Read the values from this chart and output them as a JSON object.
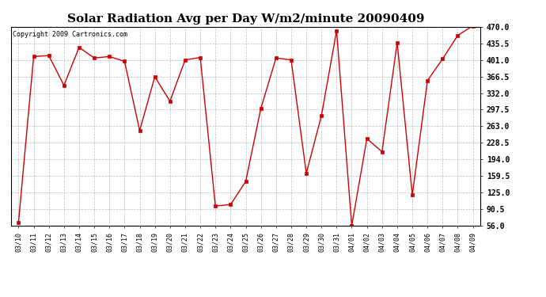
{
  "title": "Solar Radiation Avg per Day W/m2/minute 20090409",
  "copyright": "Copyright 2009 Cartronics.com",
  "labels": [
    "03/10",
    "03/11",
    "03/12",
    "03/13",
    "03/14",
    "03/15",
    "03/16",
    "03/17",
    "03/18",
    "03/19",
    "03/20",
    "03/21",
    "03/22",
    "03/23",
    "03/24",
    "03/25",
    "03/26",
    "03/27",
    "03/28",
    "03/29",
    "03/30",
    "03/31",
    "04/01",
    "04/02",
    "04/03",
    "04/04",
    "04/05",
    "04/06",
    "04/07",
    "04/08",
    "04/09"
  ],
  "values": [
    63,
    408,
    410,
    348,
    427,
    405,
    408,
    398,
    254,
    366,
    315,
    401,
    406,
    97,
    100,
    148,
    300,
    405,
    401,
    165,
    285,
    462,
    56,
    237,
    210,
    437,
    120,
    358,
    403,
    452,
    472
  ],
  "line_color": "#cc0000",
  "marker": "s",
  "marker_size": 2.5,
  "background_color": "#ffffff",
  "grid_color": "#aaaaaa",
  "ylim": [
    56.0,
    470.0
  ],
  "yticks": [
    56.0,
    90.5,
    125.0,
    159.5,
    194.0,
    228.5,
    263.0,
    297.5,
    332.0,
    366.5,
    401.0,
    435.5,
    470.0
  ],
  "title_fontsize": 11,
  "copyright_fontsize": 6,
  "xtick_fontsize": 6,
  "ytick_fontsize": 7
}
